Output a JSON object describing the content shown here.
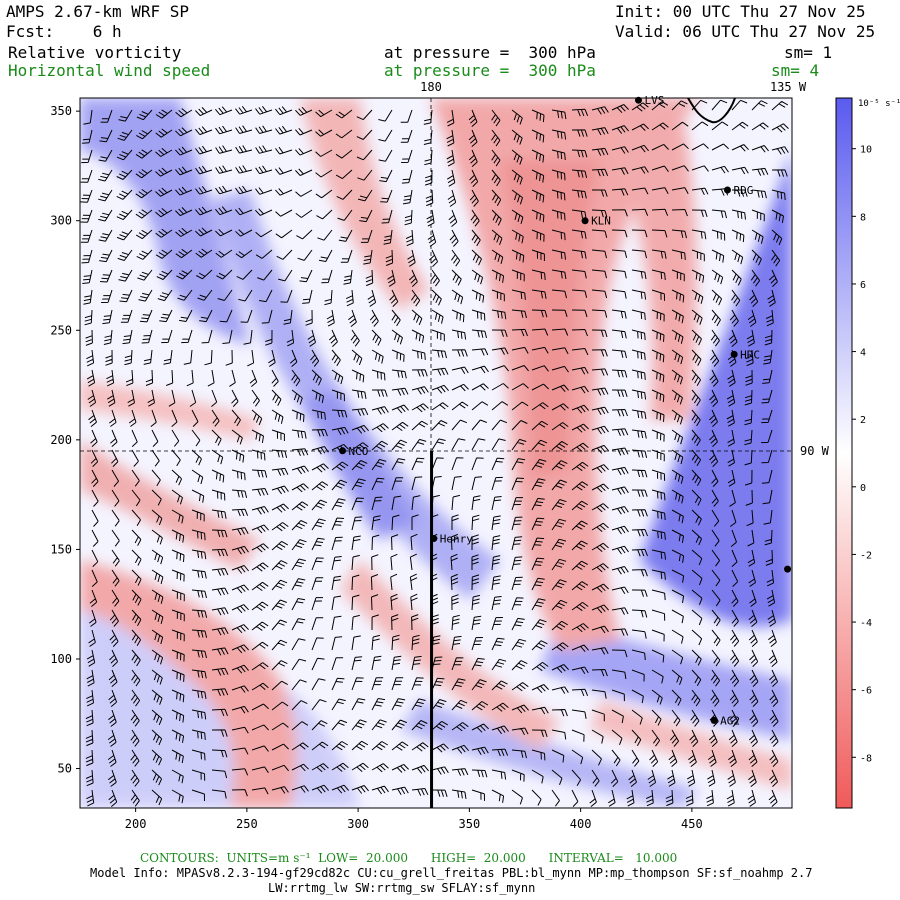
{
  "header": {
    "model": "AMPS 2.67-km WRF SP",
    "init": "Init: 00 UTC Thu 27 Nov 25",
    "fcst": "Fcst:    6 h",
    "valid": "Valid: 06 UTC Thu 27 Nov 25",
    "field1_name": "Relative vorticity",
    "field1_level": "at pressure =  300 hPa",
    "field1_sm": "sm= 1",
    "field2_name": "Horizontal wind speed",
    "field2_level": "at pressure =  300 hPa",
    "field2_sm": "sm= 4"
  },
  "map": {
    "x_ticks": [
      "200",
      "250",
      "300",
      "350",
      "400",
      "450"
    ],
    "y_ticks": [
      "50",
      "100",
      "150",
      "200",
      "250",
      "300",
      "350"
    ],
    "x_range": [
      175,
      495
    ],
    "y_range": [
      32,
      356
    ],
    "lon_labels": {
      "top_180": "180",
      "top_135w": "135 W",
      "right_90w": "90 W"
    },
    "section_line_x": 333,
    "section_line_y": [
      32,
      195
    ],
    "stations": [
      {
        "name": "LVS",
        "x": 426,
        "y": 355
      },
      {
        "name": "RDG",
        "x": 466,
        "y": 314
      },
      {
        "name": "KLN",
        "x": 402,
        "y": 300
      },
      {
        "name": "HRC",
        "x": 469,
        "y": 239
      },
      {
        "name": "NCO",
        "x": 293,
        "y": 195
      },
      {
        "name": "Henry",
        "x": 334,
        "y": 155
      },
      {
        "name": "AG2",
        "x": 460,
        "y": 72
      },
      {
        "name": "",
        "x": 493,
        "y": 141
      }
    ]
  },
  "colorbar": {
    "units": "10⁻⁵ s⁻¹",
    "ticks": [
      "10",
      "8",
      "6",
      "4",
      "2",
      "0",
      "-2",
      "-4",
      "-6",
      "-8"
    ],
    "tick_values": [
      10,
      8,
      6,
      4,
      2,
      0,
      -2,
      -4,
      -6,
      -8
    ],
    "range": [
      -9.5,
      11.5
    ],
    "colors": {
      "positive": "#5a5af0",
      "zero": "#ffffff",
      "negative": "#f05a5a"
    }
  },
  "footer": {
    "contours": "CONTOURS:  UNITS=m s⁻¹  LOW=  20.000      HIGH=  20.000      INTERVAL=   10.000",
    "model_info": "Model Info: MPASv8.2.3-194-gf29cd82c CU:cu_grell_freitas PBL:bl_mynn MP:mp_thompson SF:sf_noahmp 2.7",
    "model_info2": "LW:rrtmg_lw SW:rrtmg_sw SFLAY:sf_mynn"
  }
}
